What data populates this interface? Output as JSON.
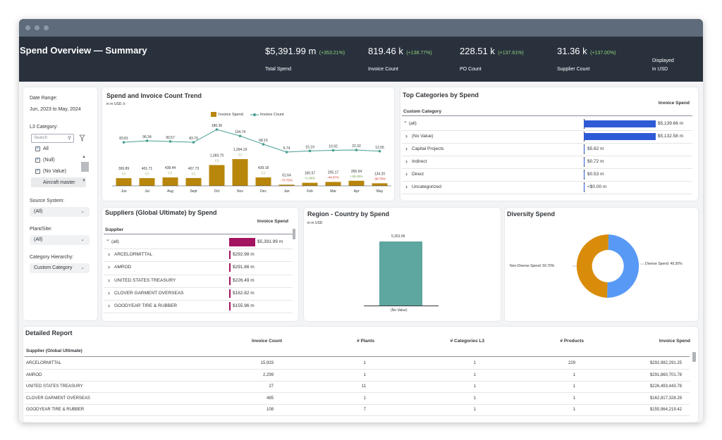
{
  "header": {
    "title": "Spend Overview — Summary",
    "kpis": [
      {
        "value": "$5,391.99 m",
        "delta": "(+353.21%)",
        "label": "Total Spend"
      },
      {
        "value": "819.46 k",
        "delta": "(+138.77%)",
        "label": "Invoice Count"
      },
      {
        "value": "228.51 k",
        "delta": "(+137.61%)",
        "label": "PO Count"
      },
      {
        "value": "31.36 k",
        "delta": "(+137.00%)",
        "label": "Supplier Count"
      }
    ],
    "displayed_line1": "Displayed",
    "displayed_line2": "in USD"
  },
  "filters": {
    "date_range_label": "Date Range:",
    "date_range_value": "Jun, 2023 to May, 2024",
    "l3_label": "L3 Category:",
    "search_placeholder": "Search",
    "options": [
      "All",
      "(Null)",
      "(No Value)",
      "Aircraft master"
    ],
    "source_label": "Source System:",
    "source_value": "(All)",
    "plant_label": "Plant/Site:",
    "plant_value": "(All)",
    "hierarchy_label": "Category Hierarchy:",
    "hierarchy_value": "Custom Category"
  },
  "trend": {
    "title": "Spend and Invoice Count Trend",
    "unit": "in m USD, k",
    "legend_spend": "Invoice Spend",
    "legend_count": "Invoice Count"
  },
  "top_categories": {
    "title": "Top Categories by Spend",
    "col_header": "Invoice Spend",
    "row_header": "Custom Category",
    "rows": [
      {
        "label": "(all)",
        "value": "$5,139.66 m",
        "fraction": 1.0
      },
      {
        "label": "(No Value)",
        "value": "$5,132.58 m",
        "fraction": 0.9986
      },
      {
        "label": "Capital Projects",
        "value": "$5.82 m",
        "fraction": 0.0011
      },
      {
        "label": "Indirect",
        "value": "$0.72 m",
        "fraction": 0.0001
      },
      {
        "label": "Direct",
        "value": "$0.53 m",
        "fraction": 0.0001
      },
      {
        "label": "Uncategorized",
        "value": "<$0.00 m",
        "fraction": 0
      }
    ]
  },
  "suppliers": {
    "title": "Suppliers (Global Ultimate) by Spend",
    "col_header": "Invoice Spend",
    "row_header": "Supplier",
    "rows": [
      {
        "label": "(all)",
        "value": "$5,391.99 m",
        "fraction": 1.0
      },
      {
        "label": "ARCELORMITTAL",
        "value": "$292.98 m",
        "fraction": 0.054
      },
      {
        "label": "AMROD",
        "value": "$291.86 m",
        "fraction": 0.054
      },
      {
        "label": "UNITED STATES TREASURY",
        "value": "$226.49 m",
        "fraction": 0.042
      },
      {
        "label": "CLOVER GARMENT OVERSEAS",
        "value": "$162.82 m",
        "fraction": 0.03
      },
      {
        "label": "GOODYEAR TIRE & RUBBER",
        "value": "$155.96 m",
        "fraction": 0.029
      }
    ]
  },
  "region": {
    "title": "Region - Country by Spend",
    "unit": "in m USD",
    "bar_value_label": "5,391.99",
    "bar_category": "(No Value)"
  },
  "diversity": {
    "title": "Diversity Spend",
    "non_diverse_label": "Non-Diverse Spend: 50.70%",
    "diverse_label": "Diverse Spend: 49.30%"
  },
  "report": {
    "title": "Detailed Report",
    "columns": [
      "Supplier (Global Ultimate)",
      "Invoice Count",
      "# Plants",
      "# Categories L3",
      "# Products",
      "Invoice Spend"
    ],
    "rows": [
      [
        "ARCELORMITTAL",
        "15,933",
        "1",
        "1",
        "229",
        "$292,982,291.25"
      ],
      [
        "AMROD",
        "2,299",
        "1",
        "1",
        "1",
        "$291,860,701.78"
      ],
      [
        "UNITED STATES TREASURY",
        "27",
        "11",
        "1",
        "1",
        "$226,493,443.78"
      ],
      [
        "CLOVER GARMENT OVERSEAS",
        "485",
        "1",
        "1",
        "1",
        "$162,817,328.29"
      ],
      [
        "GOODYEAR TIRE & RUBBER",
        "108",
        "7",
        "1",
        "1",
        "$155,964,219.42"
      ]
    ]
  },
  "chart_data": {
    "type": "bar",
    "categories": [
      "Jun",
      "Jul",
      "Aug",
      "Sept",
      "Oct",
      "Nov",
      "Dec",
      "Jan",
      "Feb",
      "Mar",
      "Apr",
      "May"
    ],
    "series": [
      {
        "name": "Invoice Spend",
        "type": "bar",
        "values": [
          399.89,
          401.71,
          438.44,
          407.73,
          1083.7,
          1394.19,
          439.18,
          61.64,
          160.57,
          205.17,
          265.54,
          134.2
        ],
        "labels": [
          "399.89",
          "401.71",
          "438.44",
          "407.73",
          "1,083.70",
          "1,394.19",
          "439.18",
          "61.64",
          "160.57",
          "205.17",
          "265.54",
          "134.20"
        ],
        "deltas": [
          "(-)",
          "(-)",
          "(-)",
          "(-)",
          "(-)",
          "(-)",
          "(-)",
          "-73.75%",
          "+1.06%",
          "-44.07%",
          "+26.43%",
          "-38.78%"
        ],
        "delta_colors": [
          "#6a9a3a",
          "#6a9a3a",
          "#6a9a3a",
          "#6a9a3a",
          "#6a9a3a",
          "#6a9a3a",
          "#6a9a3a",
          "#d0301e",
          "#6a9a3a",
          "#d0301e",
          "#6a9a3a",
          "#d0301e"
        ]
      },
      {
        "name": "Invoice Count",
        "type": "line",
        "values": [
          83.81,
          96.34,
          90.57,
          83.79,
          186.36,
          134.74,
          68.15,
          5.74,
          15.19,
          19.92,
          22.32,
          12.56
        ],
        "labels": [
          "83.81",
          "96.34",
          "90.57",
          "83.79",
          "186.36",
          "134.74",
          "68.15",
          "5.74",
          "15.19",
          "19.92",
          "22.32",
          "12.56"
        ]
      }
    ],
    "colors": {
      "bar": "#b8860b",
      "line": "#4a9e94"
    },
    "extra_charts": [
      {
        "type": "bar",
        "categories": [
          "(No Value)"
        ],
        "values": [
          5391.99
        ],
        "color": "#5ea6a0"
      },
      {
        "type": "pie",
        "categories": [
          "Non-Diverse Spend",
          "Diverse Spend"
        ],
        "values": [
          50.7,
          49.3
        ],
        "colors": [
          "#d98c0a",
          "#5899f5"
        ]
      }
    ]
  }
}
